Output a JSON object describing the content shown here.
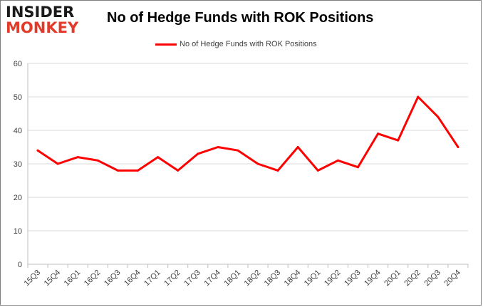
{
  "logo": {
    "line1": "INSIDER",
    "line2": "MONKEY"
  },
  "chart_data": {
    "type": "line",
    "title": "No of Hedge Funds with ROK Positions",
    "xlabel": "",
    "ylabel": "",
    "categories": [
      "15Q3",
      "15Q4",
      "16Q1",
      "16Q2",
      "16Q3",
      "16Q4",
      "17Q1",
      "17Q2",
      "17Q3",
      "17Q4",
      "18Q1",
      "18Q2",
      "18Q3",
      "18Q4",
      "19Q1",
      "19Q2",
      "19Q3",
      "19Q4",
      "20Q1",
      "20Q2",
      "20Q3",
      "20Q4"
    ],
    "series": [
      {
        "name": "No of Hedge Funds with ROK Positions",
        "color": "#ff0000",
        "values": [
          34,
          30,
          32,
          31,
          28,
          28,
          32,
          28,
          33,
          35,
          34,
          30,
          28,
          35,
          28,
          31,
          29,
          39,
          37,
          50,
          44,
          35
        ]
      }
    ],
    "ylim": [
      0,
      60
    ],
    "yticks": [
      0,
      10,
      20,
      30,
      40,
      50,
      60
    ],
    "grid": true,
    "legend_position": "top-center"
  }
}
